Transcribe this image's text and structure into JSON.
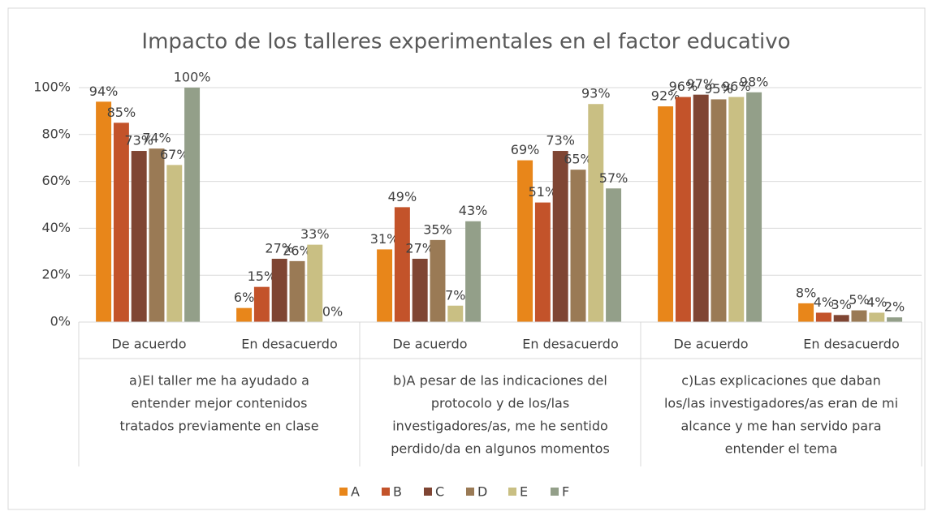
{
  "chart_data": {
    "type": "bar",
    "title": "Impacto de los talleres experimentales en el factor educativo",
    "groups": [
      {
        "lines": [
          "a)El taller me ha ayudado a",
          "entender mejor contenidos",
          "tratados previamente en clase"
        ],
        "categories": [
          "De acuerdo",
          "En desacuerdo"
        ]
      },
      {
        "lines": [
          "b)A pesar de las indicaciones del",
          "protocolo y de los/las",
          "investigadores/as, me he sentido",
          "perdido/da en algunos momentos"
        ],
        "categories": [
          "De acuerdo",
          "En desacuerdo"
        ]
      },
      {
        "lines": [
          "c)Las explicaciones que daban",
          "los/las investigadores/as eran de mi",
          "alcance y me han servido para",
          "entender el tema"
        ],
        "categories": [
          "De acuerdo",
          "En desacuerdo"
        ]
      }
    ],
    "series": [
      {
        "name": "A",
        "color": "#e8861a",
        "values": [
          94,
          6,
          31,
          69,
          92,
          8
        ],
        "value_labels": [
          "94%",
          "6%",
          "31%",
          "69%",
          "92%",
          "8%"
        ]
      },
      {
        "name": "B",
        "color": "#c3532a",
        "values": [
          85,
          15,
          49,
          51,
          96,
          4
        ],
        "value_labels": [
          "85%",
          "15%",
          "49%",
          "51%",
          "96%",
          "4%"
        ]
      },
      {
        "name": "C",
        "color": "#7f4533",
        "values": [
          73,
          27,
          27,
          73,
          97,
          3
        ],
        "value_labels": [
          "73%",
          "27%",
          "27%",
          "73%",
          "97%",
          "3%"
        ]
      },
      {
        "name": "D",
        "color": "#9a7a55",
        "values": [
          74,
          26,
          35,
          65,
          95,
          5
        ],
        "value_labels": [
          "74%",
          "26%",
          "35%",
          "65%",
          "95%",
          "5%"
        ]
      },
      {
        "name": "E",
        "color": "#c9bf83",
        "values": [
          67,
          33,
          7,
          93,
          96,
          4
        ],
        "value_labels": [
          "67%",
          "33%",
          "7%",
          "93%",
          "96%",
          "4%"
        ]
      },
      {
        "name": "F",
        "color": "#939f89",
        "values": [
          100,
          0,
          43,
          57,
          98,
          2
        ],
        "value_labels": [
          "100%",
          "0%",
          "43%",
          "57%",
          "98%",
          "2%"
        ]
      }
    ],
    "ylim": [
      0,
      100
    ],
    "yticks": [
      {
        "value": 0,
        "label": "0%"
      },
      {
        "value": 20,
        "label": "20%"
      },
      {
        "value": 40,
        "label": "40%"
      },
      {
        "value": 60,
        "label": "60%"
      },
      {
        "value": 80,
        "label": "80%"
      },
      {
        "value": 100,
        "label": "100%"
      }
    ],
    "grid": true,
    "legend": "bottom"
  }
}
